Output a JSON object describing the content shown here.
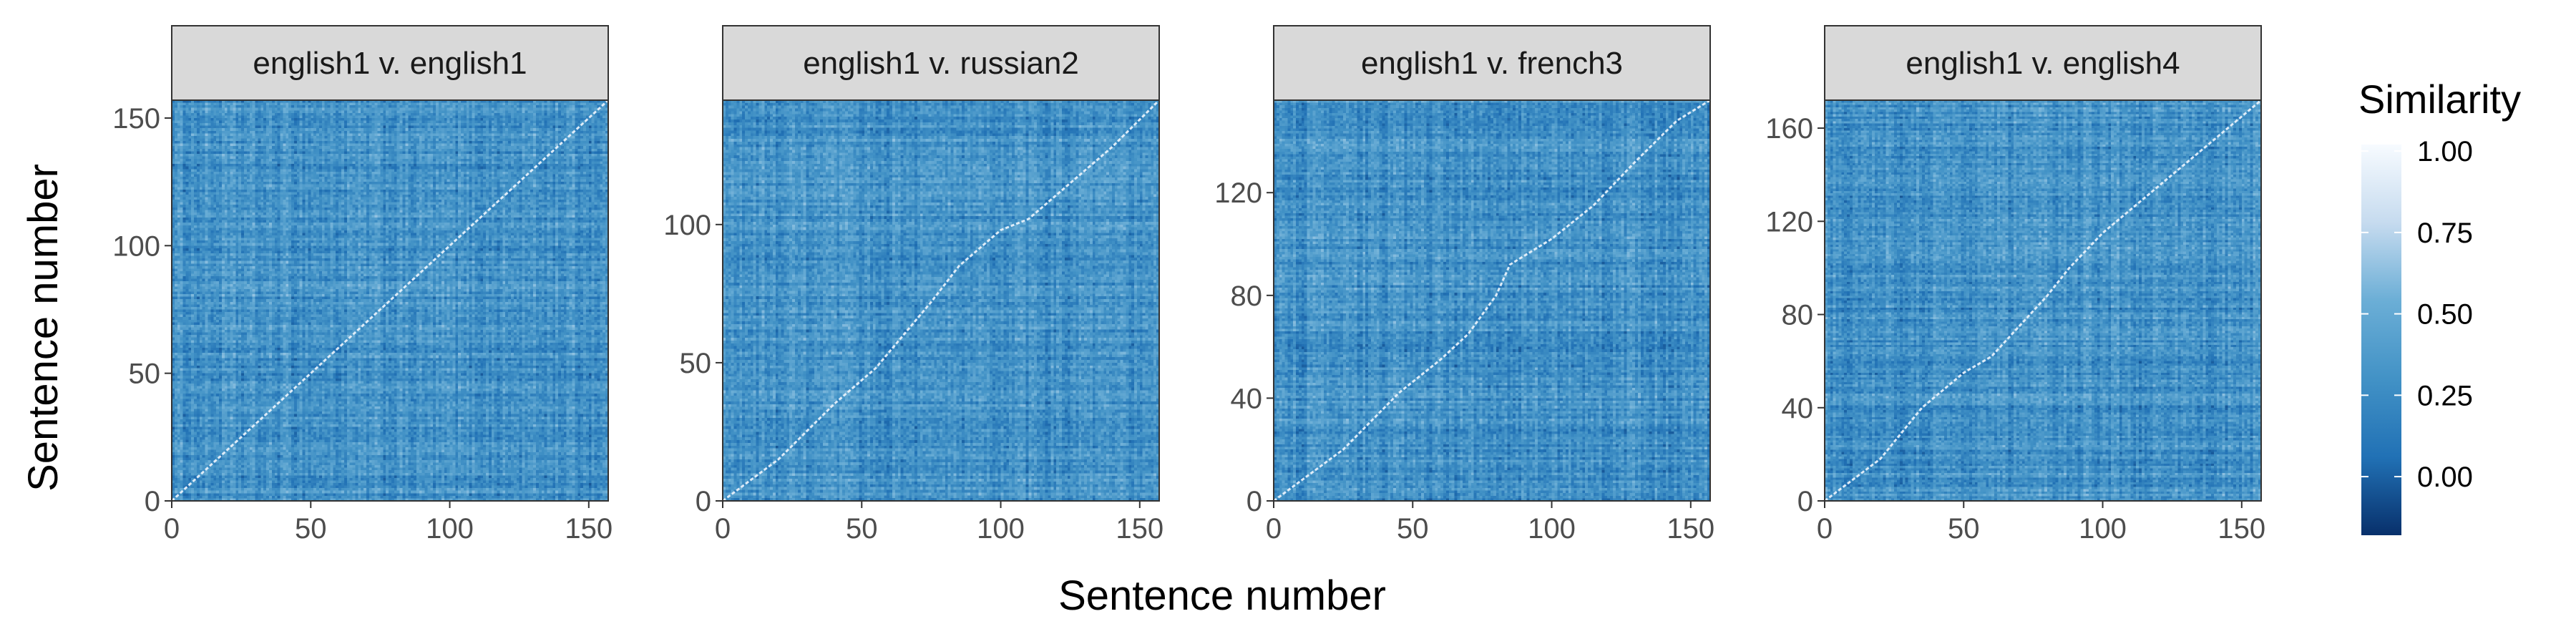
{
  "figure": {
    "xlabel": "Sentence number",
    "ylabel": "Sentence number"
  },
  "legend": {
    "title": "Similarity",
    "labels": [
      "1.00",
      "0.75",
      "0.50",
      "0.25",
      "0.00"
    ],
    "values": [
      1.0,
      0.75,
      0.5,
      0.25,
      0.0
    ],
    "range": [
      -0.18,
      1.02
    ],
    "colors": [
      "#08306b",
      "#2171b5",
      "#4292c6",
      "#6baed6",
      "#c6dbef",
      "#f7fbff"
    ]
  },
  "chart_data": [
    {
      "type": "heatmap",
      "title": "english1 v. english1",
      "xlabel": "Sentence number",
      "ylabel": "Sentence number",
      "xlim": [
        0,
        157
      ],
      "ylim": [
        0,
        157
      ],
      "xticks": [
        0,
        50,
        100,
        150
      ],
      "xtick_labels": [
        "0",
        "50",
        "100",
        "150"
      ],
      "yticks": [
        0,
        50,
        100,
        150
      ],
      "ytick_labels": [
        "0",
        "50",
        "100",
        "150"
      ],
      "diagonal": [
        [
          0,
          0
        ],
        [
          157,
          157
        ]
      ],
      "background_similarity": 0.3
    },
    {
      "type": "heatmap",
      "title": "english1 v. russian2",
      "xlabel": "Sentence number",
      "ylabel": "Sentence number",
      "xlim": [
        0,
        157
      ],
      "ylim": [
        0,
        145
      ],
      "xticks": [
        0,
        50,
        100,
        150
      ],
      "xtick_labels": [
        "0",
        "50",
        "100",
        "150"
      ],
      "yticks": [
        0,
        50,
        100
      ],
      "ytick_labels": [
        "0",
        "50",
        "100"
      ],
      "diagonal": [
        [
          0,
          0
        ],
        [
          20,
          15
        ],
        [
          40,
          35
        ],
        [
          55,
          48
        ],
        [
          65,
          60
        ],
        [
          75,
          72
        ],
        [
          85,
          85
        ],
        [
          100,
          98
        ],
        [
          110,
          102
        ],
        [
          125,
          115
        ],
        [
          140,
          128
        ],
        [
          157,
          145
        ]
      ],
      "background_similarity": 0.3
    },
    {
      "type": "heatmap",
      "title": "english1 v. french3",
      "xlabel": "Sentence number",
      "ylabel": "Sentence number",
      "xlim": [
        0,
        157
      ],
      "ylim": [
        0,
        156
      ],
      "xticks": [
        0,
        50,
        100,
        150
      ],
      "xtick_labels": [
        "0",
        "50",
        "100",
        "150"
      ],
      "yticks": [
        0,
        40,
        80,
        120
      ],
      "ytick_labels": [
        "0",
        "40",
        "80",
        "120"
      ],
      "diagonal": [
        [
          0,
          0
        ],
        [
          25,
          20
        ],
        [
          45,
          42
        ],
        [
          60,
          55
        ],
        [
          70,
          65
        ],
        [
          80,
          80
        ],
        [
          85,
          92
        ],
        [
          100,
          102
        ],
        [
          115,
          115
        ],
        [
          130,
          132
        ],
        [
          145,
          148
        ],
        [
          157,
          156
        ]
      ],
      "background_similarity": 0.3
    },
    {
      "type": "heatmap",
      "title": "english1 v. english4",
      "xlabel": "Sentence number",
      "ylabel": "Sentence number",
      "xlim": [
        0,
        157
      ],
      "ylim": [
        0,
        172
      ],
      "xticks": [
        0,
        50,
        100,
        150
      ],
      "xtick_labels": [
        "0",
        "50",
        "100",
        "150"
      ],
      "yticks": [
        0,
        40,
        80,
        120,
        160
      ],
      "ytick_labels": [
        "0",
        "40",
        "80",
        "120",
        "160"
      ],
      "diagonal": [
        [
          0,
          0
        ],
        [
          20,
          18
        ],
        [
          35,
          40
        ],
        [
          50,
          55
        ],
        [
          60,
          62
        ],
        [
          70,
          75
        ],
        [
          80,
          88
        ],
        [
          88,
          100
        ],
        [
          100,
          115
        ],
        [
          115,
          130
        ],
        [
          130,
          145
        ],
        [
          145,
          160
        ],
        [
          157,
          172
        ]
      ],
      "background_similarity": 0.3
    }
  ]
}
